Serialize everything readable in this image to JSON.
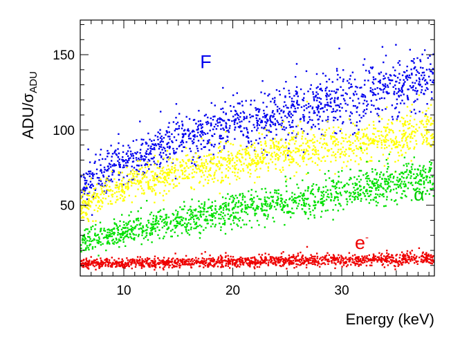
{
  "chart_data": {
    "type": "scatter",
    "title": "",
    "xlabel": "Energy (keV)",
    "ylabel": {
      "main": "ADU/σ",
      "subscript": "ADU"
    },
    "xlim": [
      6,
      38.5
    ],
    "ylim": [
      3,
      173
    ],
    "xticks": [
      10,
      20,
      30
    ],
    "yticks": [
      50,
      100,
      150
    ],
    "xtick_labels": [
      "10",
      "20",
      "30"
    ],
    "ytick_labels": [
      "50",
      "100",
      "150"
    ],
    "grid": false,
    "series": [
      {
        "name": "F",
        "label": "F",
        "label_sup": "",
        "color": "#0000ee",
        "trend": {
          "x": [
            6,
            10,
            15,
            20,
            25,
            30,
            35,
            38.5
          ],
          "y": [
            62,
            78,
            93,
            103,
            112,
            120,
            128,
            134
          ]
        },
        "spread": 9,
        "points": 1300
      },
      {
        "name": "yellow",
        "label": "",
        "label_sup": "",
        "color": "#ffff00",
        "trend": {
          "x": [
            6,
            10,
            15,
            20,
            25,
            30,
            35,
            38.5
          ],
          "y": [
            48,
            63,
            72,
            79,
            85,
            90,
            95,
            100
          ]
        },
        "spread": 7,
        "points": 1300
      },
      {
        "name": "alpha",
        "label": "α",
        "label_sup": "",
        "color": "#00e000",
        "trend": {
          "x": [
            6,
            10,
            15,
            20,
            25,
            30,
            35,
            38.5
          ],
          "y": [
            25,
            33,
            40,
            46,
            52,
            59,
            65,
            70
          ]
        },
        "spread": 6,
        "points": 1300
      },
      {
        "name": "electron",
        "label": "e",
        "label_sup": "-",
        "color": "#ee0000",
        "trend": {
          "x": [
            6,
            10,
            15,
            20,
            25,
            30,
            35,
            38.5
          ],
          "y": [
            11,
            11.5,
            12,
            12.5,
            13,
            13.5,
            14,
            14.5
          ]
        },
        "spread": 2,
        "points": 1300
      }
    ],
    "annotations": [
      {
        "text": "F",
        "sup": "",
        "x": 17,
        "y": 141,
        "color": "#0000ee"
      },
      {
        "text": "α",
        "sup": "",
        "x": 36.6,
        "y": 53,
        "color": "#00cc00"
      },
      {
        "text": "e",
        "sup": "-",
        "x": 31.2,
        "y": 21,
        "color": "#ee0000"
      }
    ]
  }
}
